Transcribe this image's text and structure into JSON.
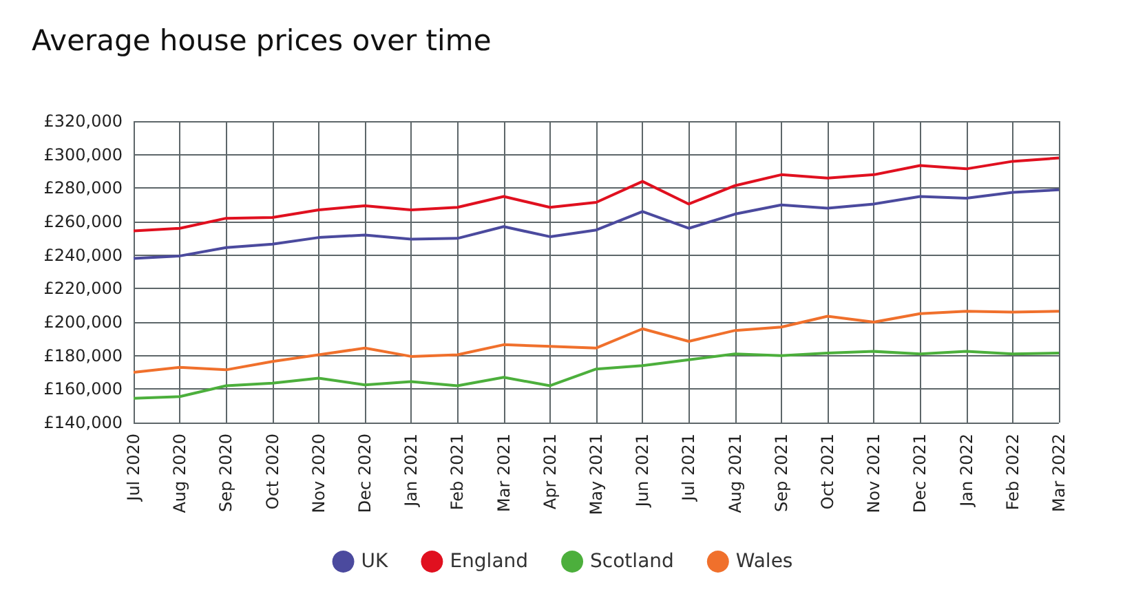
{
  "chart_data": {
    "type": "line",
    "title": "Average house prices over time",
    "categories": [
      "Jul 2020",
      "Aug 2020",
      "Sep 2020",
      "Oct 2020",
      "Nov 2020",
      "Dec 2020",
      "Jan 2021",
      "Feb 2021",
      "Mar 2021",
      "Apr 2021",
      "May 2021",
      "Jun 2021",
      "Jul 2021",
      "Aug 2021",
      "Sep 2021",
      "Oct 2021",
      "Nov 2021",
      "Dec 2021",
      "Jan 2022",
      "Feb 2022",
      "Mar 2022"
    ],
    "series": [
      {
        "name": "UK",
        "color": "#4b4a9e",
        "values": [
          238000,
          239500,
          244500,
          246500,
          250500,
          252000,
          249500,
          250000,
          257000,
          251000,
          255000,
          266000,
          256000,
          264500,
          270000,
          268000,
          270500,
          275000,
          274000,
          277500,
          279000
        ]
      },
      {
        "name": "England",
        "color": "#e0101f",
        "values": [
          254500,
          256000,
          262000,
          262500,
          267000,
          269500,
          267000,
          268500,
          275000,
          268500,
          271500,
          284000,
          270500,
          281500,
          288000,
          286000,
          288000,
          293500,
          291500,
          296000,
          298000
        ]
      },
      {
        "name": "Scotland",
        "color": "#4caf3c",
        "values": [
          154500,
          155500,
          162000,
          163500,
          166500,
          162500,
          164500,
          162000,
          167000,
          162000,
          172000,
          174000,
          177500,
          181000,
          180000,
          181500,
          182500,
          181000,
          182500,
          181000,
          181500
        ]
      },
      {
        "name": "Wales",
        "color": "#f0702c",
        "values": [
          170000,
          173000,
          171500,
          176500,
          180500,
          184500,
          179500,
          180500,
          186500,
          185500,
          184500,
          196000,
          188500,
          195000,
          197000,
          203500,
          200000,
          205000,
          206500,
          206000,
          206500
        ]
      }
    ],
    "ylim": [
      140000,
      320000
    ],
    "yticks": [
      {
        "value": 140000,
        "label": "£140,000"
      },
      {
        "value": 160000,
        "label": "£160,000"
      },
      {
        "value": 180000,
        "label": "£180,000"
      },
      {
        "value": 200000,
        "label": "£200,000"
      },
      {
        "value": 220000,
        "label": "£220,000"
      },
      {
        "value": 240000,
        "label": "£240,000"
      },
      {
        "value": 260000,
        "label": "£260,000"
      },
      {
        "value": 280000,
        "label": "£280,000"
      },
      {
        "value": 300000,
        "label": "£300,000"
      },
      {
        "value": 320000,
        "label": "£320,000"
      }
    ],
    "grid": true,
    "legend": "bottom",
    "marker": "none",
    "line_style": "solid"
  }
}
